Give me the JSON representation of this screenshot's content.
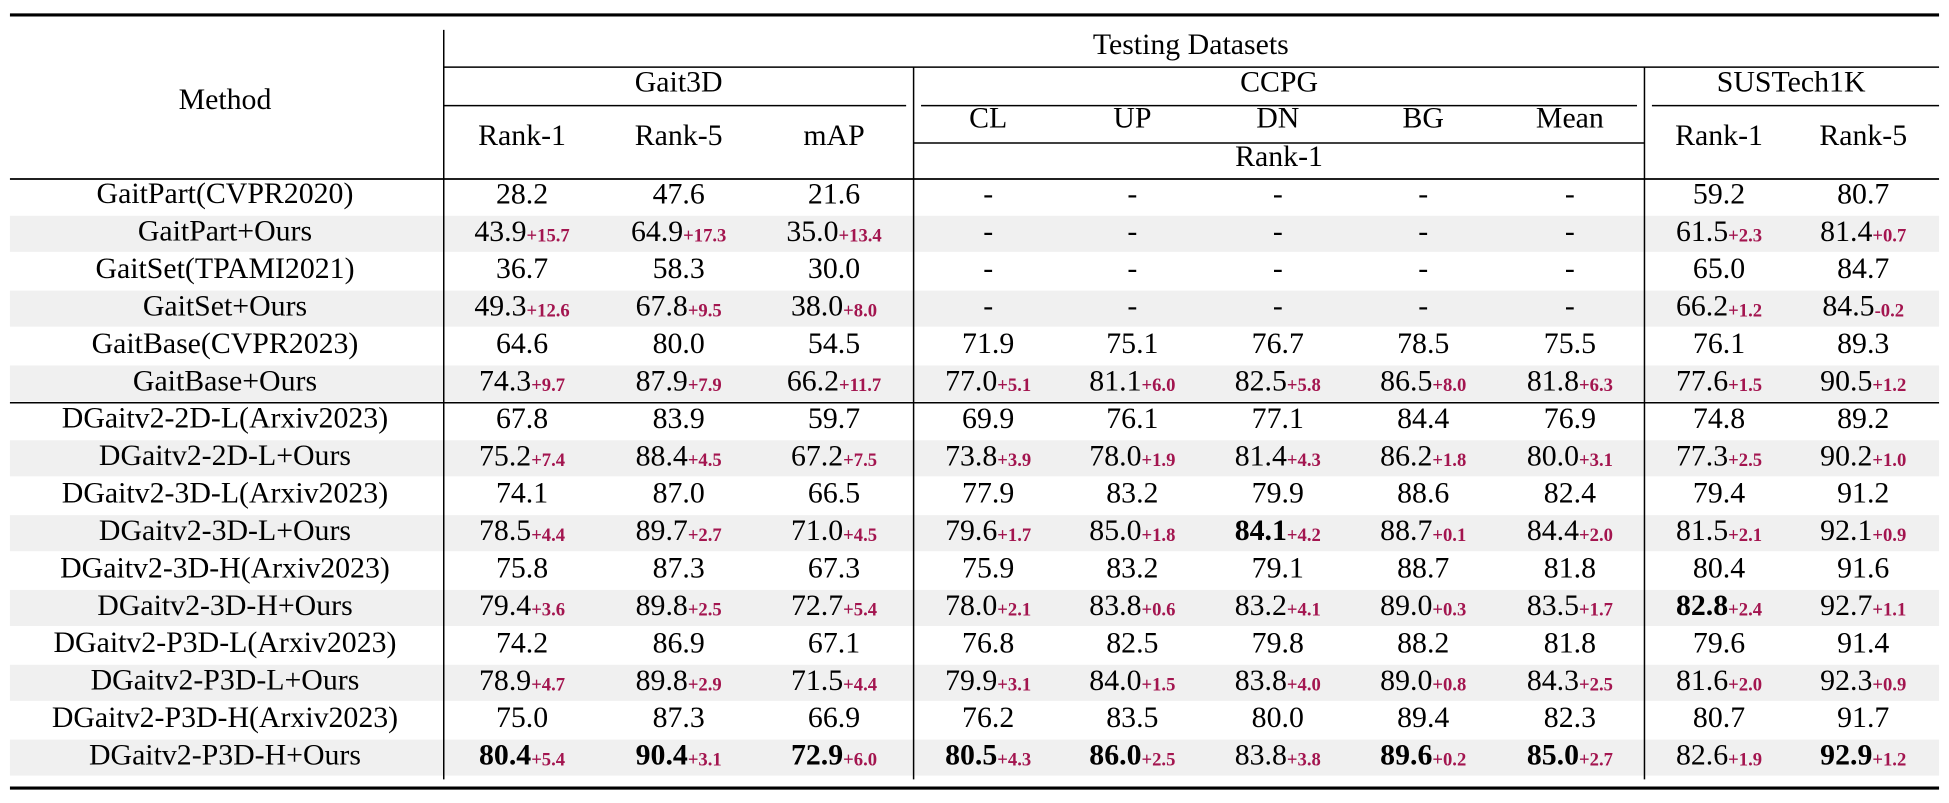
{
  "header": {
    "method": "Method",
    "testing": "Testing Datasets",
    "groups": [
      "Gait3D",
      "CCPG",
      "SUSTech1K"
    ],
    "columns": [
      "Rank-1",
      "Rank-5",
      "mAP",
      "CL",
      "UP",
      "DN",
      "BG",
      "Mean",
      "Rank-1",
      "Rank-5"
    ],
    "ccpg_metric": "Rank-1"
  },
  "table": {
    "rows": [
      {
        "method": "GaitPart(CVPR2020)",
        "cells": [
          {
            "v": "28.2"
          },
          {
            "v": "47.6"
          },
          {
            "v": "21.6"
          },
          {
            "v": "-"
          },
          {
            "v": "-"
          },
          {
            "v": "-"
          },
          {
            "v": "-"
          },
          {
            "v": "-"
          },
          {
            "v": "59.2"
          },
          {
            "v": "80.7"
          }
        ]
      },
      {
        "method": "GaitPart+Ours",
        "cells": [
          {
            "v": "43.9",
            "d": "+15.7"
          },
          {
            "v": "64.9",
            "d": "+17.3"
          },
          {
            "v": "35.0",
            "d": "+13.4"
          },
          {
            "v": "-"
          },
          {
            "v": "-"
          },
          {
            "v": "-"
          },
          {
            "v": "-"
          },
          {
            "v": "-"
          },
          {
            "v": "61.5",
            "d": "+2.3"
          },
          {
            "v": "81.4",
            "d": "+0.7"
          }
        ]
      },
      {
        "method": "GaitSet(TPAMI2021)",
        "cells": [
          {
            "v": "36.7"
          },
          {
            "v": "58.3"
          },
          {
            "v": "30.0"
          },
          {
            "v": "-"
          },
          {
            "v": "-"
          },
          {
            "v": "-"
          },
          {
            "v": "-"
          },
          {
            "v": "-"
          },
          {
            "v": "65.0"
          },
          {
            "v": "84.7"
          }
        ]
      },
      {
        "method": "GaitSet+Ours",
        "cells": [
          {
            "v": "49.3",
            "d": "+12.6"
          },
          {
            "v": "67.8",
            "d": "+9.5"
          },
          {
            "v": "38.0",
            "d": "+8.0"
          },
          {
            "v": "-"
          },
          {
            "v": "-"
          },
          {
            "v": "-"
          },
          {
            "v": "-"
          },
          {
            "v": "-"
          },
          {
            "v": "66.2",
            "d": "+1.2"
          },
          {
            "v": "84.5",
            "d": "-0.2"
          }
        ]
      },
      {
        "method": "GaitBase(CVPR2023)",
        "cells": [
          {
            "v": "64.6"
          },
          {
            "v": "80.0"
          },
          {
            "v": "54.5"
          },
          {
            "v": "71.9"
          },
          {
            "v": "75.1"
          },
          {
            "v": "76.7"
          },
          {
            "v": "78.5"
          },
          {
            "v": "75.5"
          },
          {
            "v": "76.1"
          },
          {
            "v": "89.3"
          }
        ]
      },
      {
        "method": "GaitBase+Ours",
        "cells": [
          {
            "v": "74.3",
            "d": "+9.7"
          },
          {
            "v": "87.9",
            "d": "+7.9"
          },
          {
            "v": "66.2",
            "d": "+11.7"
          },
          {
            "v": "77.0",
            "d": "+5.1"
          },
          {
            "v": "81.1",
            "d": "+6.0"
          },
          {
            "v": "82.5",
            "d": "+5.8"
          },
          {
            "v": "86.5",
            "d": "+8.0"
          },
          {
            "v": "81.8",
            "d": "+6.3"
          },
          {
            "v": "77.6",
            "d": "+1.5"
          },
          {
            "v": "90.5",
            "d": "+1.2"
          }
        ]
      },
      {
        "method": "DGaitv2-2D-L(Arxiv2023)",
        "cells": [
          {
            "v": "67.8"
          },
          {
            "v": "83.9"
          },
          {
            "v": "59.7"
          },
          {
            "v": "69.9"
          },
          {
            "v": "76.1"
          },
          {
            "v": "77.1"
          },
          {
            "v": "84.4"
          },
          {
            "v": "76.9"
          },
          {
            "v": "74.8"
          },
          {
            "v": "89.2"
          }
        ]
      },
      {
        "method": "DGaitv2-2D-L+Ours",
        "cells": [
          {
            "v": "75.2",
            "d": "+7.4"
          },
          {
            "v": "88.4",
            "d": "+4.5"
          },
          {
            "v": "67.2",
            "d": "+7.5"
          },
          {
            "v": "73.8",
            "d": "+3.9"
          },
          {
            "v": "78.0",
            "d": "+1.9"
          },
          {
            "v": "81.4",
            "d": "+4.3"
          },
          {
            "v": "86.2",
            "d": "+1.8"
          },
          {
            "v": "80.0",
            "d": "+3.1"
          },
          {
            "v": "77.3",
            "d": "+2.5"
          },
          {
            "v": "90.2",
            "d": "+1.0"
          }
        ]
      },
      {
        "method": "DGaitv2-3D-L(Arxiv2023)",
        "cells": [
          {
            "v": "74.1"
          },
          {
            "v": "87.0"
          },
          {
            "v": "66.5"
          },
          {
            "v": "77.9"
          },
          {
            "v": "83.2"
          },
          {
            "v": "79.9"
          },
          {
            "v": "88.6"
          },
          {
            "v": "82.4"
          },
          {
            "v": "79.4"
          },
          {
            "v": "91.2"
          }
        ]
      },
      {
        "method": "DGaitv2-3D-L+Ours",
        "cells": [
          {
            "v": "78.5",
            "d": "+4.4"
          },
          {
            "v": "89.7",
            "d": "+2.7"
          },
          {
            "v": "71.0",
            "d": "+4.5"
          },
          {
            "v": "79.6",
            "d": "+1.7"
          },
          {
            "v": "85.0",
            "d": "+1.8"
          },
          {
            "v": "84.1",
            "d": "+4.2",
            "b": true
          },
          {
            "v": "88.7",
            "d": "+0.1"
          },
          {
            "v": "84.4",
            "d": "+2.0"
          },
          {
            "v": "81.5",
            "d": "+2.1"
          },
          {
            "v": "92.1",
            "d": "+0.9"
          }
        ]
      },
      {
        "method": "DGaitv2-3D-H(Arxiv2023)",
        "cells": [
          {
            "v": "75.8"
          },
          {
            "v": "87.3"
          },
          {
            "v": "67.3"
          },
          {
            "v": "75.9"
          },
          {
            "v": "83.2"
          },
          {
            "v": "79.1"
          },
          {
            "v": "88.7"
          },
          {
            "v": "81.8"
          },
          {
            "v": "80.4"
          },
          {
            "v": "91.6"
          }
        ]
      },
      {
        "method": "DGaitv2-3D-H+Ours",
        "cells": [
          {
            "v": "79.4",
            "d": "+3.6"
          },
          {
            "v": "89.8",
            "d": "+2.5"
          },
          {
            "v": "72.7",
            "d": "+5.4"
          },
          {
            "v": "78.0",
            "d": "+2.1"
          },
          {
            "v": "83.8",
            "d": "+0.6"
          },
          {
            "v": "83.2",
            "d": "+4.1"
          },
          {
            "v": "89.0",
            "d": "+0.3"
          },
          {
            "v": "83.5",
            "d": "+1.7"
          },
          {
            "v": "82.8",
            "d": "+2.4",
            "b": true
          },
          {
            "v": "92.7",
            "d": "+1.1"
          }
        ]
      },
      {
        "method": "DGaitv2-P3D-L(Arxiv2023)",
        "cells": [
          {
            "v": "74.2"
          },
          {
            "v": "86.9"
          },
          {
            "v": "67.1"
          },
          {
            "v": "76.8"
          },
          {
            "v": "82.5"
          },
          {
            "v": "79.8"
          },
          {
            "v": "88.2"
          },
          {
            "v": "81.8"
          },
          {
            "v": "79.6"
          },
          {
            "v": "91.4"
          }
        ]
      },
      {
        "method": "DGaitv2-P3D-L+Ours",
        "cells": [
          {
            "v": "78.9",
            "d": "+4.7"
          },
          {
            "v": "89.8",
            "d": "+2.9"
          },
          {
            "v": "71.5",
            "d": "+4.4"
          },
          {
            "v": "79.9",
            "d": "+3.1"
          },
          {
            "v": "84.0",
            "d": "+1.5"
          },
          {
            "v": "83.8",
            "d": "+4.0"
          },
          {
            "v": "89.0",
            "d": "+0.8"
          },
          {
            "v": "84.3",
            "d": "+2.5"
          },
          {
            "v": "81.6",
            "d": "+2.0"
          },
          {
            "v": "92.3",
            "d": "+0.9"
          }
        ]
      },
      {
        "method": "DGaitv2-P3D-H(Arxiv2023)",
        "cells": [
          {
            "v": "75.0"
          },
          {
            "v": "87.3"
          },
          {
            "v": "66.9"
          },
          {
            "v": "76.2"
          },
          {
            "v": "83.5"
          },
          {
            "v": "80.0"
          },
          {
            "v": "89.4"
          },
          {
            "v": "82.3"
          },
          {
            "v": "80.7"
          },
          {
            "v": "91.7"
          }
        ]
      },
      {
        "method": "DGaitv2-P3D-H+Ours",
        "cells": [
          {
            "v": "80.4",
            "d": "+5.4",
            "b": true
          },
          {
            "v": "90.4",
            "d": "+3.1",
            "b": true
          },
          {
            "v": "72.9",
            "d": "+6.0",
            "b": true
          },
          {
            "v": "80.5",
            "d": "+4.3",
            "b": true
          },
          {
            "v": "86.0",
            "d": "+2.5",
            "b": true
          },
          {
            "v": "83.8",
            "d": "+3.8"
          },
          {
            "v": "89.6",
            "d": "+0.2",
            "b": true
          },
          {
            "v": "85.0",
            "d": "+2.7",
            "b": true
          },
          {
            "v": "82.6",
            "d": "+1.9"
          },
          {
            "v": "92.9",
            "d": "+1.2",
            "b": true
          }
        ]
      }
    ]
  }
}
